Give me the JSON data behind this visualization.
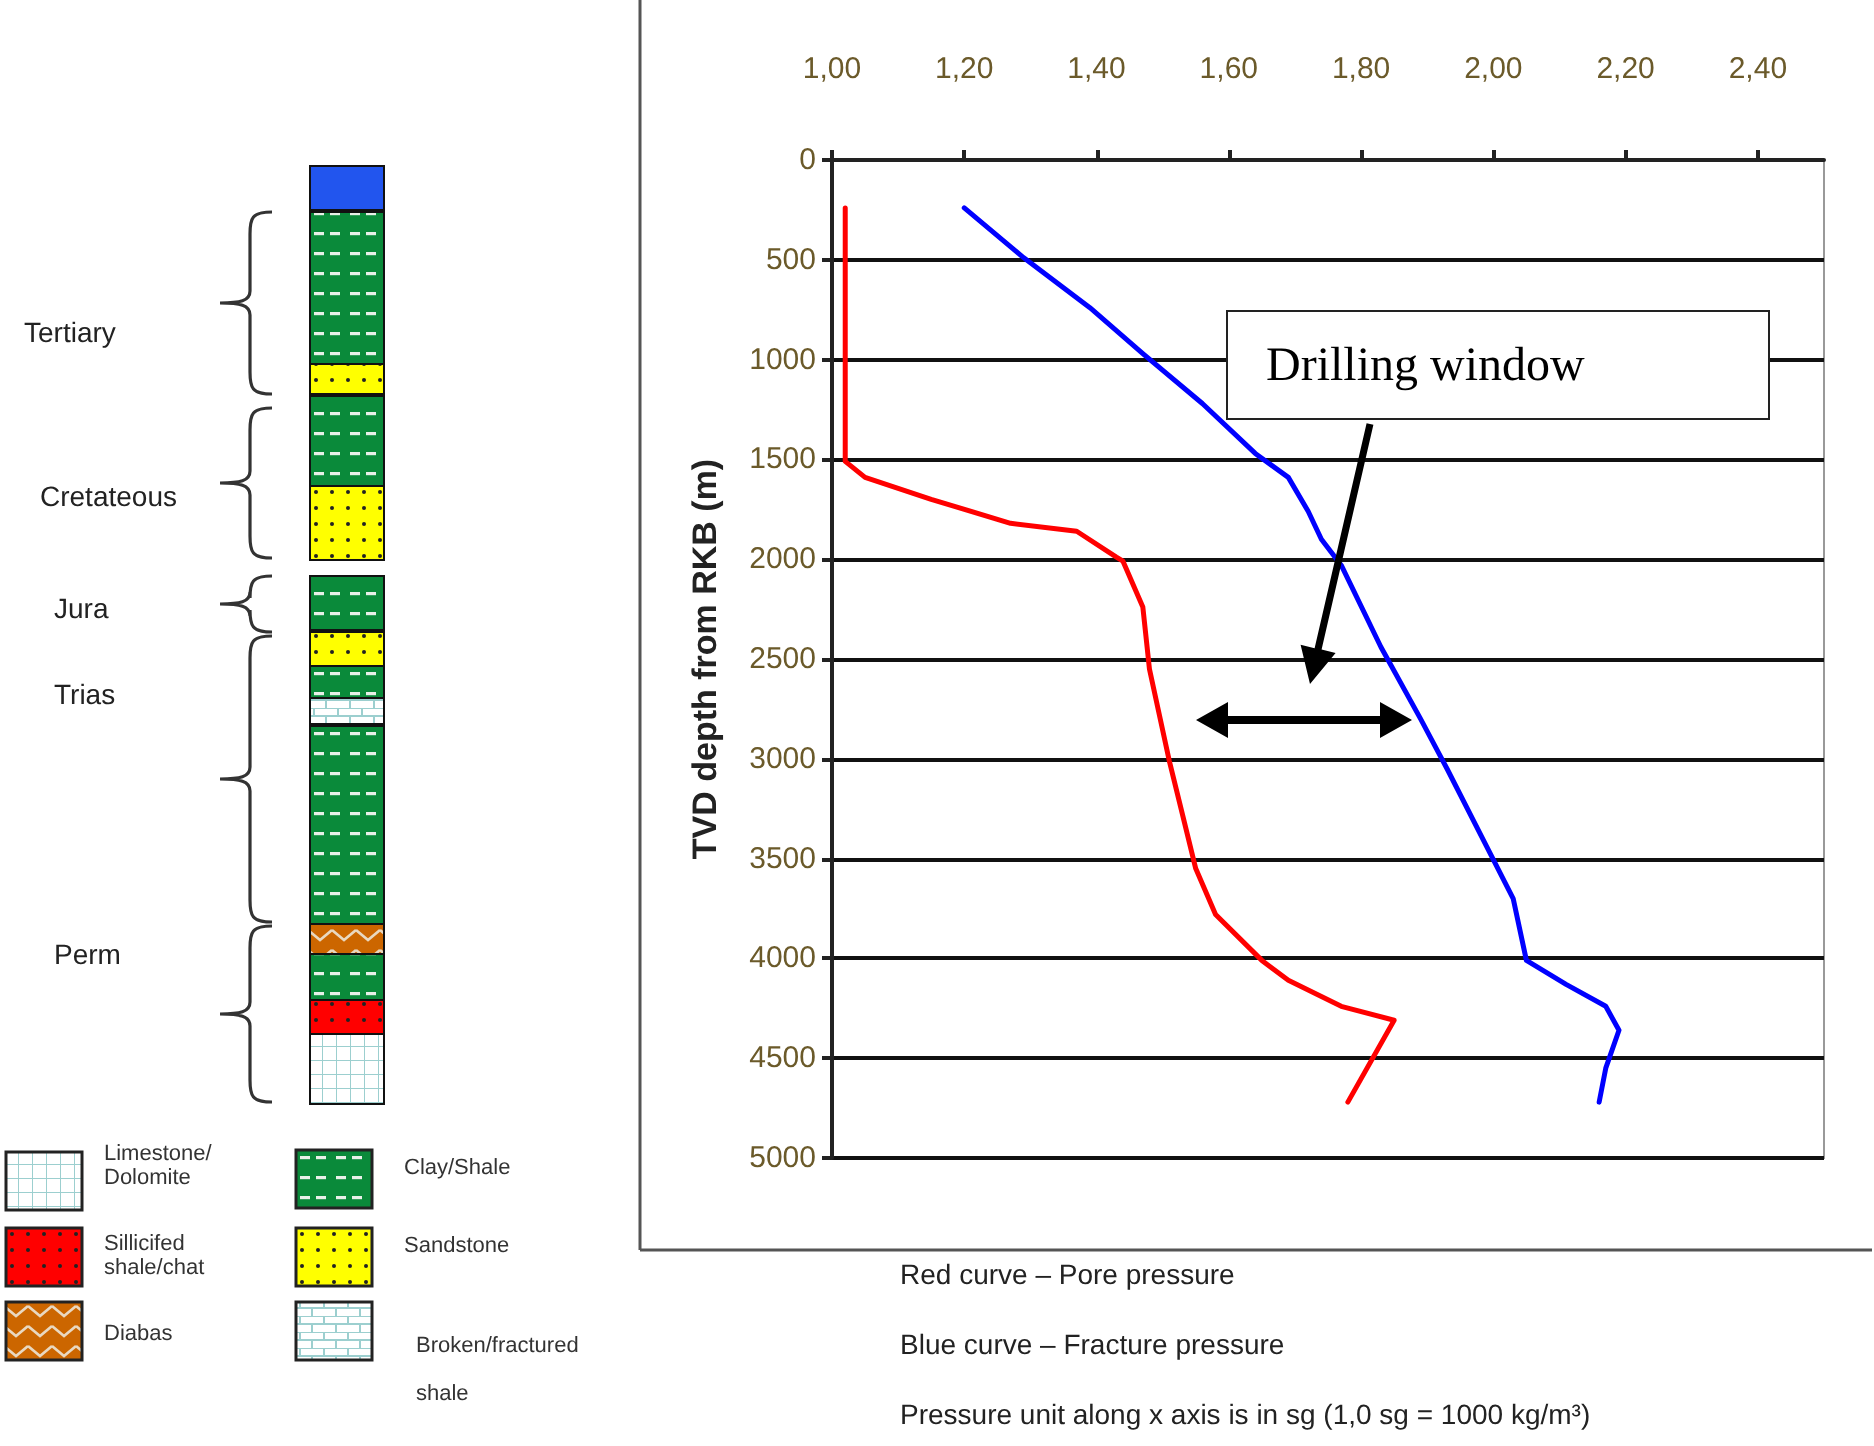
{
  "chart_data": {
    "type": "line",
    "ylabel": "TVD depth from RKB (m)",
    "xlim": [
      1.0,
      2.5
    ],
    "xticks": [
      {
        "value": 1.0,
        "label": "1,00"
      },
      {
        "value": 1.2,
        "label": "1,20"
      },
      {
        "value": 1.4,
        "label": "1,40"
      },
      {
        "value": 1.6,
        "label": "1,60"
      },
      {
        "value": 1.8,
        "label": "1,80"
      },
      {
        "value": 2.0,
        "label": "2,00"
      },
      {
        "value": 2.2,
        "label": "2,20"
      },
      {
        "value": 2.4,
        "label": "2,40"
      }
    ],
    "ylim": [
      5000,
      0
    ],
    "yticks": [
      0,
      500,
      1000,
      1500,
      2000,
      2500,
      3000,
      3500,
      4000,
      4500,
      5000
    ],
    "grid": "y",
    "marker": "none",
    "line_style": "solid",
    "series": [
      {
        "color": "#ff0000",
        "x": [
          1.02,
          1.02,
          1.02,
          1.02,
          1.05,
          1.15,
          1.27,
          1.37,
          1.43,
          1.44,
          1.47,
          1.48,
          1.51,
          1.53,
          1.55,
          1.58,
          1.65,
          1.69,
          1.77,
          1.85,
          1.78
        ],
        "values": [
          240,
          1300,
          1420,
          1510,
          1590,
          1700,
          1820,
          1860,
          1990,
          2010,
          2240,
          2550,
          3010,
          3280,
          3550,
          3780,
          4010,
          4110,
          4240,
          4310,
          4720
        ]
      },
      {
        "color": "#0000ff",
        "x": [
          1.2,
          1.29,
          1.39,
          1.47,
          1.56,
          1.64,
          1.69,
          1.72,
          1.74,
          1.77,
          1.83,
          1.89,
          1.93,
          1.99,
          2.03,
          2.05,
          2.11,
          2.17,
          2.19,
          2.17,
          2.16
        ],
        "values": [
          240,
          490,
          740,
          970,
          1220,
          1470,
          1590,
          1760,
          1900,
          2030,
          2440,
          2800,
          3050,
          3440,
          3700,
          4010,
          4130,
          4240,
          4360,
          4550,
          4720
        ]
      }
    ],
    "annotations": [
      "Drilling window",
      "Tertiary",
      "Cretateous",
      "Jura",
      "Trias",
      "Perm",
      "Limestone/ Dolomite",
      "Sillicifed shale/chat",
      "Diabas",
      "Clay/Shale",
      "Sandstone",
      "Broken/fractured shale",
      "Red curve – Pore pressure",
      "Blue curve – Fracture pressure",
      "Pressure unit along x axis is in sg (1,0 sg = 1000 kg/m³)"
    ]
  }
}
